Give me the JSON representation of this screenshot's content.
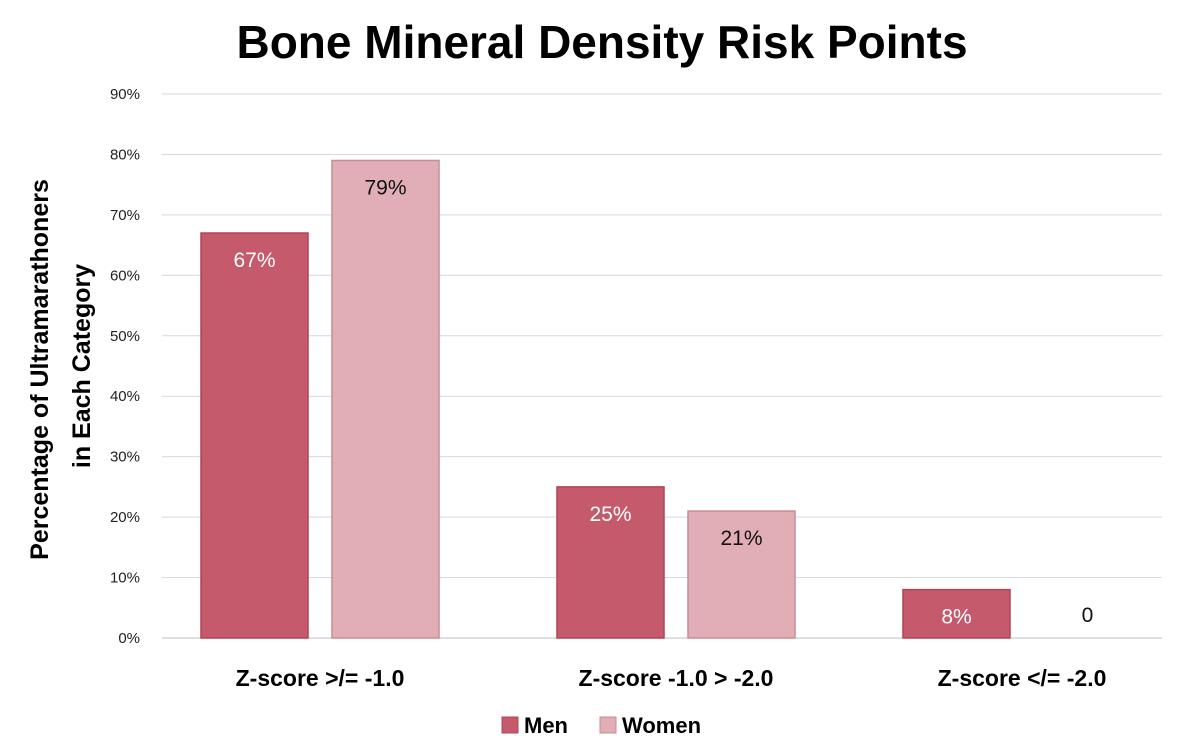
{
  "chart_data": {
    "type": "bar",
    "title": "Bone Mineral Density Risk Points",
    "ylabel": [
      "Percentage of Ultramarathoners",
      "in Each Category"
    ],
    "xlabel": "",
    "categories": [
      "Z-score >/= -1.0",
      "Z-score -1.0 > -2.0",
      "Z-score </= -2.0"
    ],
    "series": [
      {
        "name": "Men",
        "values": [
          67,
          25,
          8
        ],
        "labels": [
          "67%",
          "25%",
          "8%"
        ],
        "color": "#c45a6c",
        "label_color": "#ffffff"
      },
      {
        "name": "Women",
        "values": [
          79,
          21,
          0
        ],
        "labels": [
          "79%",
          "21%",
          "0"
        ],
        "color": "#e2aeb6",
        "label_color": "#111111"
      }
    ],
    "ylim": [
      0,
      90
    ],
    "yticks": [
      0,
      10,
      20,
      30,
      40,
      50,
      60,
      70,
      80,
      90
    ],
    "ytick_labels": [
      "0%",
      "10%",
      "20%",
      "30%",
      "40%",
      "50%",
      "60%",
      "70%",
      "80%",
      "90%"
    ],
    "grid": true,
    "legend": "bottom"
  }
}
